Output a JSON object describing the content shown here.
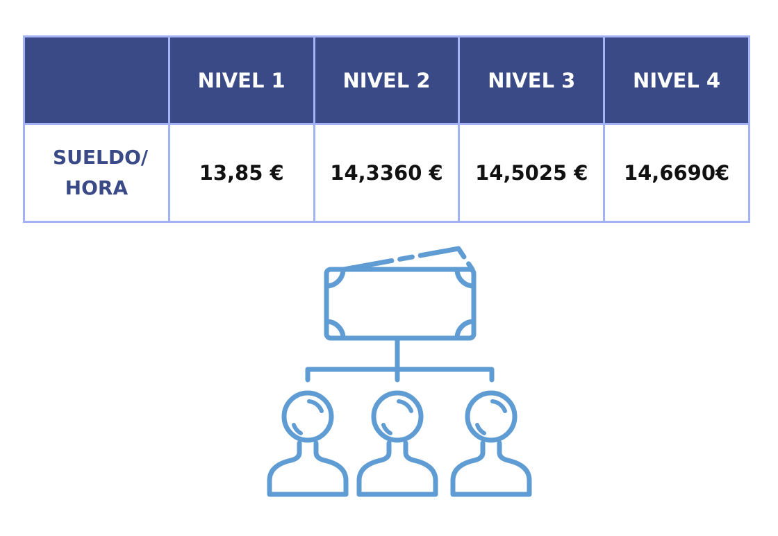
{
  "table": {
    "header": [
      "NIVEL 1",
      "NIVEL 2",
      "NIVEL 3",
      "NIVEL 4"
    ],
    "rows": [
      [
        "SUELDO/ HORA",
        "13,85 €",
        "14,3360 €",
        "14,5025 €",
        "14,6690€"
      ]
    ]
  }
}
